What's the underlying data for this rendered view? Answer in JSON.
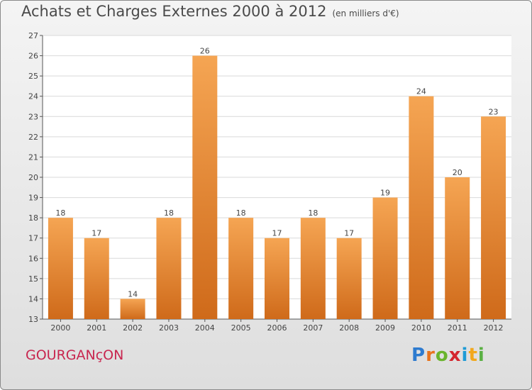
{
  "header": {
    "title": "Achats et Charges Externes 2000 à 2012",
    "subtitle": "(en milliers d'€)"
  },
  "footer": {
    "commune": "GOURGANçON",
    "logo": [
      "P",
      "r",
      "o",
      "x",
      "i",
      "t",
      "i"
    ],
    "logo_colors": [
      "#2e7bcf",
      "#e8731d",
      "#6ab42d",
      "#d4262e",
      "#1f9bd6",
      "#f2a81d",
      "#5ab043"
    ]
  },
  "colors": {
    "bar_light": "#f5a553",
    "bar_dark": "#cf6a1a",
    "axis_text": "#444444",
    "grid": "#d9d9d9"
  },
  "chart_data": {
    "type": "bar",
    "title": "Achats et Charges Externes 2000 à 2012",
    "categories": [
      "2000",
      "2001",
      "2002",
      "2003",
      "2004",
      "2005",
      "2006",
      "2007",
      "2008",
      "2009",
      "2010",
      "2011",
      "2012"
    ],
    "values": [
      18,
      17,
      14,
      18,
      26,
      18,
      17,
      18,
      17,
      19,
      24,
      20,
      23
    ],
    "ylim": [
      13,
      27
    ],
    "yticks": [
      13,
      14,
      15,
      16,
      17,
      18,
      19,
      20,
      21,
      22,
      23,
      24,
      25,
      26,
      27
    ],
    "grid": true,
    "xlabel": "",
    "ylabel": ""
  }
}
